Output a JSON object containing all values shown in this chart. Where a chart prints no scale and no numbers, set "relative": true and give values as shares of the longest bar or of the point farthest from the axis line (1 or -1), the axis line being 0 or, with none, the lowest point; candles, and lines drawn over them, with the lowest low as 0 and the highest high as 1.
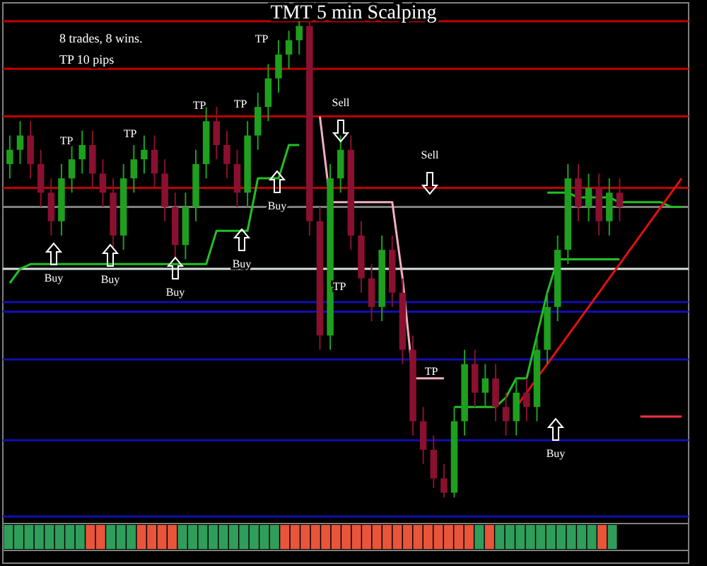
{
  "chart_data": [
    {
      "type": "candlestick",
      "title": "TMT 5 min Scalping",
      "relative": true,
      "categories": [
        null,
        null,
        null,
        null,
        null,
        null,
        null,
        null,
        null,
        null,
        null,
        null,
        null,
        null,
        null,
        null,
        null,
        null,
        null,
        null,
        null,
        null,
        null,
        null,
        null,
        null,
        null,
        null,
        null,
        null,
        null,
        null,
        null,
        null,
        null,
        null,
        null,
        null,
        null,
        null,
        null,
        null,
        null,
        null,
        null,
        null,
        null,
        null,
        null,
        null,
        null,
        null,
        null,
        null,
        null,
        null,
        null,
        null,
        null,
        null,
        null,
        null,
        null,
        null,
        null,
        null
      ],
      "ohlc": [
        [
          0.7,
          0.76,
          0.67,
          0.73
        ],
        [
          0.73,
          0.79,
          0.7,
          0.76
        ],
        [
          0.76,
          0.79,
          0.67,
          0.7
        ],
        [
          0.7,
          0.73,
          0.61,
          0.64
        ],
        [
          0.64,
          0.67,
          0.55,
          0.58
        ],
        [
          0.58,
          0.7,
          0.55,
          0.67
        ],
        [
          0.67,
          0.74,
          0.64,
          0.71
        ],
        [
          0.71,
          0.77,
          0.68,
          0.74
        ],
        [
          0.74,
          0.77,
          0.65,
          0.68
        ],
        [
          0.68,
          0.71,
          0.61,
          0.64
        ],
        [
          0.64,
          0.67,
          0.52,
          0.55
        ],
        [
          0.55,
          0.7,
          0.52,
          0.67
        ],
        [
          0.67,
          0.74,
          0.64,
          0.71
        ],
        [
          0.71,
          0.76,
          0.68,
          0.73
        ],
        [
          0.73,
          0.76,
          0.65,
          0.68
        ],
        [
          0.68,
          0.71,
          0.58,
          0.61
        ],
        [
          0.61,
          0.64,
          0.5,
          0.53
        ],
        [
          0.53,
          0.64,
          0.5,
          0.61
        ],
        [
          0.61,
          0.73,
          0.58,
          0.7
        ],
        [
          0.7,
          0.82,
          0.67,
          0.79
        ],
        [
          0.79,
          0.82,
          0.71,
          0.74
        ],
        [
          0.74,
          0.77,
          0.67,
          0.7
        ],
        [
          0.7,
          0.73,
          0.61,
          0.64
        ],
        [
          0.64,
          0.79,
          0.61,
          0.76
        ],
        [
          0.76,
          0.85,
          0.73,
          0.82
        ],
        [
          0.82,
          0.91,
          0.79,
          0.88
        ],
        [
          0.88,
          0.96,
          0.85,
          0.93
        ],
        [
          0.93,
          0.98,
          0.9,
          0.96
        ],
        [
          0.96,
          1.0,
          0.93,
          0.99
        ],
        [
          0.99,
          1.0,
          0.55,
          0.58
        ],
        [
          0.58,
          0.61,
          0.31,
          0.34
        ],
        [
          0.34,
          0.7,
          0.31,
          0.67
        ],
        [
          0.67,
          0.76,
          0.64,
          0.73
        ],
        [
          0.73,
          0.76,
          0.52,
          0.55
        ],
        [
          0.55,
          0.58,
          0.43,
          0.46
        ],
        [
          0.46,
          0.49,
          0.37,
          0.4
        ],
        [
          0.4,
          0.55,
          0.37,
          0.52
        ],
        [
          0.52,
          0.55,
          0.4,
          0.43
        ],
        [
          0.43,
          0.46,
          0.28,
          0.31
        ],
        [
          0.31,
          0.34,
          0.13,
          0.16
        ],
        [
          0.16,
          0.19,
          0.07,
          0.1
        ],
        [
          0.1,
          0.13,
          0.02,
          0.04
        ],
        [
          0.04,
          0.07,
          0,
          0.01
        ],
        [
          0.01,
          0.19,
          0,
          0.16
        ],
        [
          0.16,
          0.31,
          0.13,
          0.28
        ],
        [
          0.28,
          0.31,
          0.19,
          0.22
        ],
        [
          0.22,
          0.28,
          0.19,
          0.25
        ],
        [
          0.25,
          0.28,
          0.16,
          0.19
        ],
        [
          0.19,
          0.22,
          0.13,
          0.16
        ],
        [
          0.16,
          0.25,
          0.13,
          0.22
        ],
        [
          0.22,
          0.25,
          0.16,
          0.19
        ],
        [
          0.19,
          0.34,
          0.16,
          0.31
        ],
        [
          0.31,
          0.43,
          0.28,
          0.4
        ],
        [
          0.4,
          0.55,
          0.37,
          0.52
        ],
        [
          0.52,
          0.7,
          0.49,
          0.67
        ],
        [
          0.67,
          0.7,
          0.58,
          0.61
        ],
        [
          0.61,
          0.68,
          0.58,
          0.65
        ],
        [
          0.65,
          0.68,
          0.55,
          0.58
        ],
        [
          0.58,
          0.67,
          0.55,
          0.64
        ],
        [
          0.64,
          0.67,
          0.58,
          0.61
        ],
        null,
        null,
        null,
        null,
        null,
        null
      ],
      "series": [
        {
          "type": "line",
          "color": "#22c022",
          "values": [
            0.45,
            0.48,
            0.49,
            0.49,
            0.49,
            0.49,
            0.49,
            0.49,
            0.49,
            0.49,
            0.49,
            0.49,
            0.49,
            0.49,
            0.49,
            0.49,
            0.49,
            0.49,
            0.49,
            0.49,
            0.56,
            0.56,
            0.56,
            0.56,
            0.67,
            0.67,
            0.67,
            0.74,
            0.74,
            null,
            null,
            null,
            null,
            null,
            null,
            null,
            null,
            null,
            null,
            null,
            null,
            null,
            null,
            0.19,
            0.19,
            0.19,
            0.19,
            0.19,
            0.21,
            0.25,
            0.25,
            0.34,
            0.43,
            0.5,
            0.5,
            0.5,
            0.5,
            0.5,
            0.5,
            0.5,
            null,
            null,
            null,
            null,
            null,
            null
          ]
        },
        {
          "type": "line",
          "color": "#f0b0c0",
          "values": [
            null,
            null,
            null,
            null,
            null,
            null,
            null,
            null,
            null,
            null,
            null,
            null,
            null,
            null,
            null,
            null,
            null,
            null,
            null,
            null,
            null,
            null,
            null,
            null,
            null,
            null,
            null,
            null,
            null,
            null,
            0.8,
            0.62,
            0.62,
            0.62,
            0.62,
            0.62,
            0.62,
            0.62,
            0.46,
            0.25,
            0.25,
            0.25,
            0.25,
            null,
            null,
            null,
            null,
            null,
            null,
            null,
            null,
            null,
            null,
            null,
            null,
            null,
            null,
            null,
            null,
            null,
            null,
            null,
            null,
            null,
            null,
            null
          ]
        },
        {
          "type": "line",
          "color": "#22c022",
          "values": [
            null,
            null,
            null,
            null,
            null,
            null,
            null,
            null,
            null,
            null,
            null,
            null,
            null,
            null,
            null,
            null,
            null,
            null,
            null,
            null,
            null,
            null,
            null,
            null,
            null,
            null,
            null,
            null,
            null,
            null,
            null,
            null,
            null,
            null,
            null,
            null,
            null,
            null,
            null,
            null,
            null,
            null,
            null,
            null,
            null,
            null,
            null,
            null,
            null,
            null,
            null,
            null,
            0.64,
            0.64,
            0.64,
            0.63,
            0.63,
            0.63,
            0.63,
            0.62,
            0.62,
            0.62,
            0.62,
            0.62,
            0.61,
            0.61
          ]
        },
        {
          "type": "line",
          "color": "#e01010",
          "values": [
            null,
            null,
            null,
            null,
            null,
            null,
            null,
            null,
            null,
            null,
            null,
            null,
            null,
            null,
            null,
            null,
            null,
            null,
            null,
            null,
            null,
            null,
            null,
            null,
            null,
            null,
            null,
            null,
            null,
            null,
            null,
            null,
            null,
            null,
            null,
            null,
            null,
            null,
            null,
            null,
            null,
            null,
            null,
            null,
            null,
            null,
            null,
            null,
            null,
            0.19,
            0.22,
            0.25,
            0.28,
            0.31,
            0.34,
            0.37,
            0.4,
            0.43,
            0.46,
            0.49,
            0.52,
            0.55,
            0.58,
            0.61,
            0.64,
            0.67
          ]
        },
        {
          "type": "line",
          "color": "#ff3040",
          "values": [
            null,
            null,
            null,
            null,
            null,
            null,
            null,
            null,
            null,
            null,
            null,
            null,
            null,
            null,
            null,
            null,
            null,
            null,
            null,
            null,
            null,
            null,
            null,
            null,
            null,
            null,
            null,
            null,
            null,
            null,
            null,
            null,
            null,
            null,
            null,
            null,
            null,
            null,
            null,
            null,
            null,
            null,
            null,
            null,
            null,
            null,
            null,
            null,
            null,
            null,
            null,
            null,
            null,
            null,
            null,
            null,
            null,
            null,
            null,
            null,
            null,
            0.17,
            0.17,
            0.17,
            0.17,
            0.17
          ]
        }
      ],
      "ref_lines": [
        {
          "axis": "y",
          "value": 1.0,
          "color": "#c00000"
        },
        {
          "axis": "y",
          "value": 0.9,
          "color": "#c00000"
        },
        {
          "axis": "y",
          "value": 0.8,
          "color": "#c00000"
        },
        {
          "axis": "y",
          "value": 0.65,
          "color": "#c00000"
        },
        {
          "axis": "y",
          "value": 0.61,
          "color": "#808080"
        },
        {
          "axis": "y",
          "value": 0.48,
          "color": "#d8e0e0"
        },
        {
          "axis": "y",
          "value": 0.41,
          "color": "#1010b0"
        },
        {
          "axis": "y",
          "value": 0.39,
          "color": "#1010b0"
        },
        {
          "axis": "y",
          "value": 0.29,
          "color": "#1010b0"
        },
        {
          "axis": "y",
          "value": 0.12,
          "color": "#1010b0"
        },
        {
          "axis": "y",
          "value": -0.04,
          "color": "#1010b0"
        }
      ],
      "annotations": [
        "8 trades, 8 wins.",
        "TP 10 pips",
        "TP",
        "TP",
        "TP",
        "TP",
        "TP",
        "TP",
        "TP",
        "Buy",
        "Buy",
        "Buy",
        "Buy",
        "Buy",
        "Buy",
        "Sell",
        "Sell"
      ]
    },
    {
      "type": "bar",
      "relative": true,
      "categories": [
        null,
        null,
        null,
        null,
        null,
        null,
        null,
        null,
        null,
        null,
        null,
        null,
        null,
        null,
        null,
        null,
        null,
        null,
        null,
        null,
        null,
        null,
        null,
        null,
        null,
        null,
        null,
        null,
        null,
        null,
        null,
        null,
        null,
        null,
        null,
        null,
        null,
        null,
        null,
        null,
        null,
        null,
        null,
        null,
        null,
        null,
        null,
        null,
        null,
        null,
        null,
        null,
        null,
        null,
        null,
        null,
        null,
        null,
        null,
        null
      ],
      "values": [
        1,
        1,
        1,
        1,
        1,
        1,
        1,
        1,
        1,
        1,
        1,
        1,
        1,
        1,
        1,
        1,
        1,
        1,
        1,
        1,
        1,
        1,
        1,
        1,
        1,
        1,
        1,
        1,
        1,
        1,
        1,
        1,
        1,
        1,
        1,
        1,
        1,
        1,
        1,
        1,
        1,
        1,
        1,
        1,
        1,
        1,
        1,
        1,
        1,
        1,
        1,
        1,
        1,
        1,
        1,
        1,
        1,
        1,
        1,
        1
      ],
      "colors": [
        "#2e9e5a",
        "#2e9e5a",
        "#2e9e5a",
        "#2e9e5a",
        "#2e9e5a",
        "#2e9e5a",
        "#2e9e5a",
        "#2e9e5a",
        "#e8553a",
        "#e8553a",
        "#2e9e5a",
        "#2e9e5a",
        "#2e9e5a",
        "#e8553a",
        "#e8553a",
        "#e8553a",
        "#e8553a",
        "#2e9e5a",
        "#2e9e5a",
        "#2e9e5a",
        "#2e9e5a",
        "#2e9e5a",
        "#2e9e5a",
        "#2e9e5a",
        "#2e9e5a",
        "#2e9e5a",
        "#2e9e5a",
        "#e8553a",
        "#e8553a",
        "#e8553a",
        "#e8553a",
        "#e8553a",
        "#e8553a",
        "#e8553a",
        "#e8553a",
        "#e8553a",
        "#e8553a",
        "#e8553a",
        "#e8553a",
        "#e8553a",
        "#e8553a",
        "#e8553a",
        "#e8553a",
        "#e8553a",
        "#e8553a",
        "#e8553a",
        "#2e9e5a",
        "#e8553a",
        "#2e9e5a",
        "#2e9e5a",
        "#2e9e5a",
        "#2e9e5a",
        "#2e9e5a",
        "#2e9e5a",
        "#2e9e5a",
        "#2e9e5a",
        "#2e9e5a",
        "#2e9e5a",
        "#e8553a",
        "#2e9e5a"
      ]
    }
  ]
}
